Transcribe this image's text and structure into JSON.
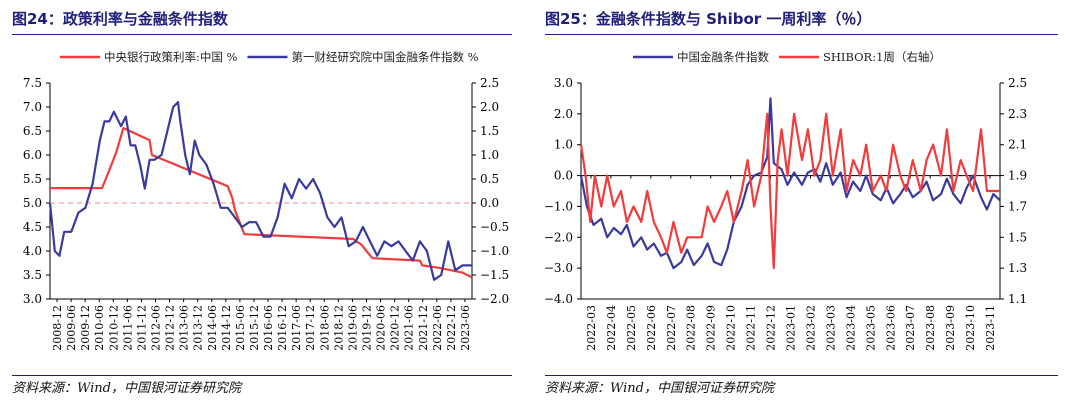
{
  "chart_data": [
    {
      "type": "line",
      "title": "图24：政策利率与金融条件指数",
      "source": "资料来源：Wind，中国银河证券研究院",
      "y_left": {
        "lim": [
          3.0,
          7.5
        ],
        "ticks": [
          "3.0",
          "3.5",
          "4.0",
          "4.5",
          "5.0",
          "5.5",
          "6.0",
          "6.5",
          "7.0",
          "7.5"
        ]
      },
      "y_right": {
        "lim": [
          -2.0,
          2.5
        ],
        "ticks": [
          "−2.0",
          "−1.5",
          "−1.0",
          "−0.5",
          "0.0",
          "0.5",
          "1.0",
          "1.5",
          "2.0",
          "2.5"
        ]
      },
      "x_ticks": [
        "2008-12",
        "2009-06",
        "2009-12",
        "2010-06",
        "2010-12",
        "2011-06",
        "2011-12",
        "2012-06",
        "2012-12",
        "2013-06",
        "2013-12",
        "2014-06",
        "2014-12",
        "2015-06",
        "2015-12",
        "2016-06",
        "2016-12",
        "2017-06",
        "2017-12",
        "2018-06",
        "2018-12",
        "2019-06",
        "2019-12",
        "2020-06",
        "2020-12",
        "2021-06",
        "2021-12",
        "2022-06",
        "2022-12",
        "2023-06"
      ],
      "x_range": [
        "2008-12",
        "2023-10"
      ],
      "series": [
        {
          "name": "中央银行政策利率:中国 %",
          "color": "#f03c3c",
          "axis": "left",
          "x": [
            "2008-12",
            "2010-10",
            "2010-12",
            "2011-02",
            "2011-04",
            "2011-07",
            "2012-06",
            "2012-07",
            "2015-03",
            "2015-05",
            "2015-06",
            "2015-08",
            "2015-10",
            "2019-08",
            "2019-09",
            "2019-11",
            "2020-04",
            "2021-12",
            "2022-01",
            "2022-08",
            "2023-06",
            "2023-10"
          ],
          "values": [
            5.31,
            5.31,
            5.56,
            5.81,
            6.06,
            6.56,
            6.31,
            6.0,
            5.35,
            5.1,
            4.85,
            4.6,
            4.35,
            4.25,
            4.2,
            4.15,
            3.85,
            3.8,
            3.7,
            3.65,
            3.55,
            3.45
          ]
        },
        {
          "name": "第一财经研究院中国金融条件指数 %",
          "color": "#3a3a9e",
          "axis": "right",
          "x": [
            "2008-12",
            "2009-02",
            "2009-04",
            "2009-06",
            "2009-09",
            "2009-12",
            "2010-03",
            "2010-06",
            "2010-09",
            "2010-11",
            "2011-01",
            "2011-03",
            "2011-06",
            "2011-08",
            "2011-10",
            "2011-12",
            "2012-02",
            "2012-04",
            "2012-06",
            "2012-08",
            "2012-11",
            "2013-01",
            "2013-04",
            "2013-06",
            "2013-07",
            "2013-09",
            "2013-11",
            "2014-01",
            "2014-03",
            "2014-06",
            "2014-09",
            "2014-12",
            "2015-03",
            "2015-06",
            "2015-09",
            "2015-12",
            "2016-03",
            "2016-06",
            "2016-09",
            "2016-12",
            "2017-03",
            "2017-06",
            "2017-09",
            "2017-12",
            "2018-03",
            "2018-06",
            "2018-09",
            "2018-12",
            "2019-03",
            "2019-06",
            "2019-09",
            "2019-12",
            "2020-03",
            "2020-06",
            "2020-09",
            "2020-12",
            "2021-03",
            "2021-06",
            "2021-09",
            "2021-12",
            "2022-03",
            "2022-06",
            "2022-09",
            "2022-12",
            "2023-03",
            "2023-06",
            "2023-10"
          ],
          "values": [
            0.0,
            -1.0,
            -1.1,
            -0.6,
            -0.6,
            -0.2,
            -0.1,
            0.4,
            1.3,
            1.7,
            1.7,
            1.9,
            1.6,
            1.8,
            1.2,
            1.2,
            0.8,
            0.3,
            0.9,
            0.9,
            1.0,
            1.4,
            2.0,
            2.1,
            1.7,
            1.0,
            0.6,
            1.3,
            1.0,
            0.8,
            0.4,
            -0.1,
            -0.1,
            -0.3,
            -0.5,
            -0.4,
            -0.4,
            -0.7,
            -0.7,
            -0.3,
            0.4,
            0.1,
            0.5,
            0.3,
            0.5,
            0.2,
            -0.3,
            -0.5,
            -0.3,
            -0.9,
            -0.8,
            -0.5,
            -0.8,
            -1.1,
            -0.8,
            -0.9,
            -0.8,
            -1.0,
            -1.2,
            -0.8,
            -1.0,
            -1.6,
            -1.5,
            -0.8,
            -1.4,
            -1.3,
            -1.3
          ]
        }
      ],
      "reference_line": {
        "axis": "right",
        "value": 0.0,
        "color": "#f0a0a0",
        "style": "dashed"
      }
    },
    {
      "type": "line",
      "title": "图25：金融条件指数与 Shibor 一周利率（％）",
      "source": "资料来源：Wind，中国银河证券研究院",
      "y_left": {
        "lim": [
          -4.0,
          3.0
        ],
        "ticks": [
          "−4.0",
          "−3.0",
          "−2.0",
          "−1.0",
          "0.0",
          "1.0",
          "2.0",
          "3.0"
        ]
      },
      "y_right": {
        "lim": [
          1.1,
          2.5
        ],
        "ticks": [
          "1.1",
          "1.3",
          "1.5",
          "1.7",
          "1.9",
          "2.1",
          "2.3",
          "2.5"
        ]
      },
      "x_ticks": [
        "2022-03",
        "2022-04",
        "2022-05",
        "2022-06",
        "2022-07",
        "2022-08",
        "2022-09",
        "2022-10",
        "2022-11",
        "2022-12",
        "2023-01",
        "2023-02",
        "2023-03",
        "2023-04",
        "2023-05",
        "2023-06",
        "2023-07",
        "2023-08",
        "2023-09",
        "2023-10",
        "2023-11"
      ],
      "x_range": [
        "2022-03-01",
        "2023-11-30"
      ],
      "series": [
        {
          "name": "中国金融条件指数",
          "color": "#3a3a9e",
          "axis": "left",
          "x": [
            "2022-03-01",
            "2022-03-10",
            "2022-03-20",
            "2022-04-01",
            "2022-04-10",
            "2022-04-20",
            "2022-05-01",
            "2022-05-10",
            "2022-05-20",
            "2022-06-01",
            "2022-06-10",
            "2022-06-20",
            "2022-07-01",
            "2022-07-10",
            "2022-07-20",
            "2022-08-01",
            "2022-08-10",
            "2022-08-20",
            "2022-09-01",
            "2022-09-10",
            "2022-09-20",
            "2022-10-01",
            "2022-10-10",
            "2022-10-20",
            "2022-11-01",
            "2022-11-10",
            "2022-11-20",
            "2022-12-01",
            "2022-12-10",
            "2022-12-15",
            "2022-12-20",
            "2023-01-01",
            "2023-01-10",
            "2023-01-20",
            "2023-02-01",
            "2023-02-10",
            "2023-02-20",
            "2023-03-01",
            "2023-03-10",
            "2023-03-20",
            "2023-04-01",
            "2023-04-10",
            "2023-04-20",
            "2023-05-01",
            "2023-05-10",
            "2023-05-20",
            "2023-06-01",
            "2023-06-10",
            "2023-06-20",
            "2023-07-01",
            "2023-07-10",
            "2023-07-20",
            "2023-08-01",
            "2023-08-10",
            "2023-08-20",
            "2023-09-01",
            "2023-09-10",
            "2023-09-20",
            "2023-10-01",
            "2023-10-10",
            "2023-10-20",
            "2023-11-01",
            "2023-11-10",
            "2023-11-20",
            "2023-11-30"
          ],
          "values": [
            0.0,
            -1.0,
            -1.6,
            -1.4,
            -2.0,
            -1.7,
            -1.9,
            -1.6,
            -2.3,
            -2.0,
            -2.4,
            -2.2,
            -2.6,
            -2.5,
            -3.0,
            -2.8,
            -2.4,
            -2.9,
            -2.6,
            -2.2,
            -2.8,
            -2.9,
            -2.4,
            -1.5,
            -1.0,
            -0.3,
            0.0,
            0.1,
            0.6,
            2.5,
            0.4,
            0.2,
            -0.3,
            0.1,
            -0.3,
            0.1,
            0.2,
            -0.2,
            0.4,
            -0.3,
            0.1,
            -0.7,
            -0.2,
            -0.5,
            0.0,
            -0.6,
            -0.8,
            -0.4,
            -0.9,
            -0.6,
            -0.3,
            -0.7,
            -0.5,
            -0.2,
            -0.8,
            -0.6,
            -0.1,
            -0.6,
            -0.9,
            -0.4,
            0.0,
            -0.7,
            -1.1,
            -0.6,
            -0.8
          ]
        },
        {
          "name": "SHIBOR:1周（右轴）",
          "color": "#f03c3c",
          "axis": "right",
          "x": [
            "2022-03-01",
            "2022-03-08",
            "2022-03-15",
            "2022-03-22",
            "2022-04-01",
            "2022-04-10",
            "2022-04-20",
            "2022-05-01",
            "2022-05-10",
            "2022-05-20",
            "2022-06-01",
            "2022-06-10",
            "2022-06-20",
            "2022-07-01",
            "2022-07-10",
            "2022-07-20",
            "2022-08-01",
            "2022-08-10",
            "2022-08-20",
            "2022-09-01",
            "2022-09-10",
            "2022-09-20",
            "2022-10-01",
            "2022-10-10",
            "2022-10-20",
            "2022-11-01",
            "2022-11-10",
            "2022-11-20",
            "2022-12-01",
            "2022-12-10",
            "2022-12-15",
            "2022-12-20",
            "2022-12-26",
            "2023-01-01",
            "2023-01-10",
            "2023-01-20",
            "2023-02-01",
            "2023-02-10",
            "2023-02-20",
            "2023-03-01",
            "2023-03-10",
            "2023-03-20",
            "2023-04-01",
            "2023-04-10",
            "2023-04-20",
            "2023-05-01",
            "2023-05-10",
            "2023-05-20",
            "2023-06-01",
            "2023-06-10",
            "2023-06-20",
            "2023-07-01",
            "2023-07-10",
            "2023-07-20",
            "2023-08-01",
            "2023-08-10",
            "2023-08-20",
            "2023-09-01",
            "2023-09-10",
            "2023-09-20",
            "2023-10-01",
            "2023-10-10",
            "2023-10-20",
            "2023-11-01",
            "2023-11-10",
            "2023-11-20",
            "2023-11-30"
          ],
          "values": [
            2.1,
            1.9,
            1.6,
            1.9,
            1.7,
            1.9,
            1.7,
            1.8,
            1.6,
            1.7,
            1.6,
            1.8,
            1.6,
            1.5,
            1.4,
            1.6,
            1.4,
            1.5,
            1.5,
            1.5,
            1.7,
            1.6,
            1.7,
            1.8,
            1.6,
            1.8,
            2.0,
            1.7,
            1.9,
            2.3,
            1.7,
            1.3,
            2.0,
            2.2,
            1.9,
            2.3,
            2.0,
            2.2,
            1.9,
            2.0,
            2.3,
            1.9,
            2.2,
            1.8,
            2.0,
            1.9,
            2.1,
            1.8,
            1.9,
            1.8,
            2.1,
            1.9,
            1.8,
            2.0,
            1.8,
            2.0,
            2.1,
            1.9,
            2.2,
            1.8,
            2.0,
            1.9,
            1.8,
            2.2,
            1.8,
            1.8,
            1.8
          ]
        }
      ]
    }
  ]
}
